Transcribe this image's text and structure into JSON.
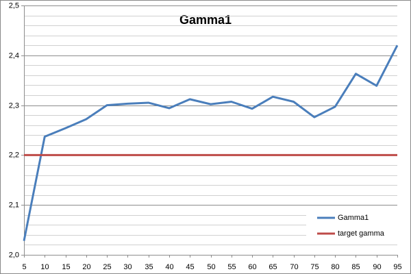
{
  "chart_data": {
    "type": "line",
    "title": "Gamma1",
    "x": [
      5,
      10,
      15,
      20,
      25,
      30,
      35,
      40,
      45,
      50,
      55,
      60,
      65,
      70,
      75,
      80,
      85,
      90,
      95
    ],
    "series": [
      {
        "name": "Gamma1",
        "color": "#4a7ebb",
        "values": [
          2.028,
          2.237,
          2.254,
          2.272,
          2.3,
          2.303,
          2.305,
          2.294,
          2.312,
          2.302,
          2.307,
          2.293,
          2.317,
          2.307,
          2.276,
          2.297,
          2.363,
          2.339,
          2.42
        ]
      },
      {
        "name": "target gamma",
        "color": "#be4b48",
        "values": [
          2.2,
          2.2,
          2.2,
          2.2,
          2.2,
          2.2,
          2.2,
          2.2,
          2.2,
          2.2,
          2.2,
          2.2,
          2.2,
          2.2,
          2.2,
          2.2,
          2.2,
          2.2,
          2.2
        ]
      }
    ],
    "xlim": [
      5,
      95
    ],
    "xticks": [
      5,
      10,
      15,
      20,
      25,
      30,
      35,
      40,
      45,
      50,
      55,
      60,
      65,
      70,
      75,
      80,
      85,
      90,
      95
    ],
    "ylim": [
      2.0,
      2.5
    ],
    "yticks": [
      {
        "value": 2.0,
        "label": "2,0"
      },
      {
        "value": 2.1,
        "label": "2,1"
      },
      {
        "value": 2.2,
        "label": "2,2"
      },
      {
        "value": 2.3,
        "label": "2,3"
      },
      {
        "value": 2.4,
        "label": "2,4"
      },
      {
        "value": 2.5,
        "label": "2,5"
      }
    ],
    "y_minor_ticks": [
      2.02,
      2.04,
      2.06,
      2.08,
      2.12,
      2.14,
      2.16,
      2.18,
      2.22,
      2.24,
      2.26,
      2.28,
      2.32,
      2.34,
      2.36,
      2.38,
      2.42,
      2.44,
      2.46,
      2.48
    ],
    "grid": true,
    "legend": "lower right"
  }
}
